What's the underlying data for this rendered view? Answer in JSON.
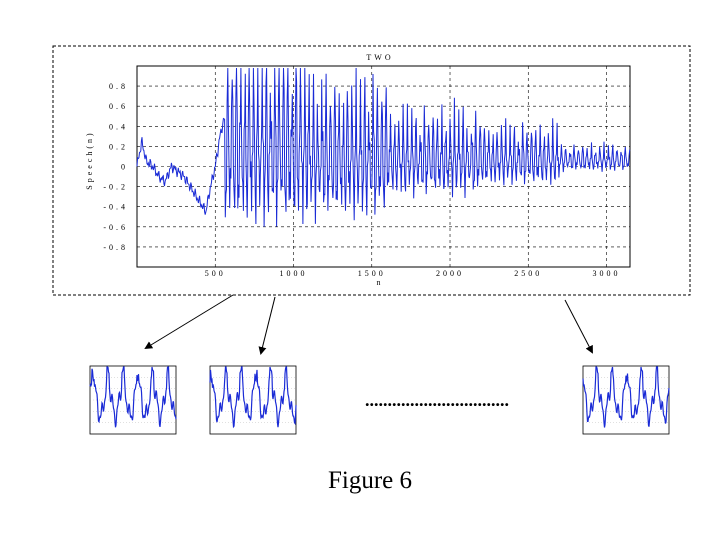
{
  "figure": {
    "caption": "Figure 6"
  },
  "chart_data": {
    "type": "line",
    "title": "TWO",
    "xlabel": "n",
    "ylabel": "Speech(n)",
    "xlim": [
      0,
      3150
    ],
    "ylim": [
      -1.0,
      1.0
    ],
    "x_ticks": [
      500,
      1000,
      1500,
      2000,
      2500,
      3000
    ],
    "x_tick_labels": [
      "500",
      "1000",
      "1500",
      "2000",
      "2500",
      "3000"
    ],
    "y_ticks": [
      0.8,
      0.6,
      0.4,
      0.2,
      0,
      -0.2,
      -0.4,
      -0.6,
      -0.8
    ],
    "y_tick_labels": [
      "0.8",
      "0.6",
      "0.4",
      "0.2",
      "0",
      "-0.2",
      "-0.4",
      "-0.6",
      "-0.8"
    ],
    "grid": true,
    "line_color": "#1a2bd6",
    "series": [
      {
        "x": [
          0,
          30,
          60,
          100,
          140,
          180,
          220,
          260,
          300,
          340,
          380,
          420,
          440,
          470,
          500,
          530,
          560,
          600,
          640,
          680,
          720,
          760,
          800,
          850,
          900,
          950,
          1000,
          1050,
          1100,
          1200,
          1300,
          1400,
          1500,
          1600,
          1700,
          1800,
          1900,
          2000,
          2100,
          2200,
          2300,
          2400,
          2500,
          2600,
          2700,
          2800,
          2900,
          3000,
          3050,
          3100,
          3150
        ],
        "y": [
          0.0,
          0.25,
          0.05,
          0.0,
          -0.1,
          -0.15,
          0.0,
          -0.05,
          -0.1,
          -0.2,
          -0.3,
          -0.4,
          -0.45,
          -0.2,
          0.0,
          0.3,
          0.5,
          0.2,
          0.9,
          -0.5,
          0.95,
          -0.6,
          0.9,
          -0.75,
          0.75,
          -0.95,
          0.7,
          -0.9,
          0.6,
          -0.7,
          0.5,
          -0.8,
          0.4,
          -0.4,
          0.4,
          -0.5,
          0.35,
          -0.3,
          0.35,
          -0.3,
          0.3,
          -0.3,
          0.3,
          -0.25,
          0.15,
          -0.15,
          0.1,
          -0.1,
          0.1,
          0.0,
          0.0
        ]
      }
    ]
  },
  "segments": [
    {
      "name": "segment-1",
      "color": "#1a2bd6"
    },
    {
      "name": "segment-2",
      "color": "#1a2bd6"
    },
    {
      "name": "segment-last",
      "color": "#1a2bd6"
    }
  ],
  "ellipsis": "................................"
}
